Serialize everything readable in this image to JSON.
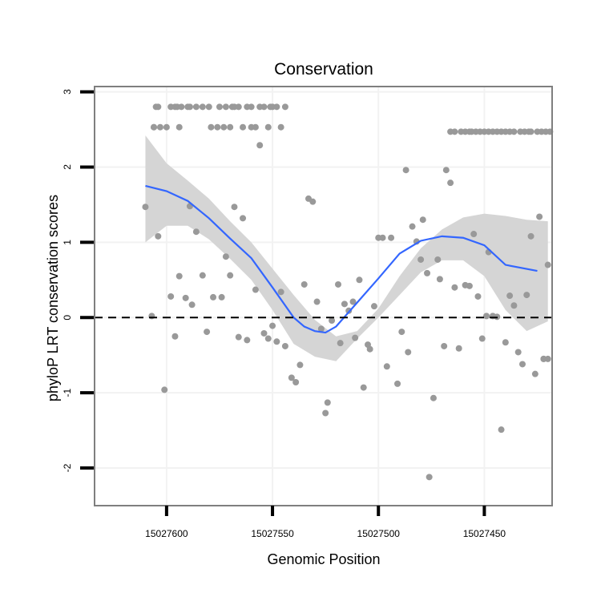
{
  "chart_data": {
    "type": "scatter",
    "title": "Conservation",
    "xlabel": "Genomic Position",
    "ylabel": "phyloP LRT conservation scores",
    "x_reversed": true,
    "xlim": [
      15027418,
      15027634
    ],
    "ylim": [
      -2.5,
      3.07
    ],
    "x_ticks": [
      15027600,
      15027550,
      15027500,
      15027450
    ],
    "y_ticks": [
      -2,
      -1,
      0,
      1,
      2,
      3
    ],
    "reference_line": 0,
    "colors": {
      "points": "#999999",
      "smooth": "#3366ff",
      "ribbon": "#d3d3d3",
      "grid": "#f2f2f2",
      "border": "#7f7f7f"
    },
    "points": [
      [
        15027610,
        1.47
      ],
      [
        15027607,
        0.02
      ],
      [
        15027606,
        2.53
      ],
      [
        15027604,
        1.08
      ],
      [
        15027601,
        -0.96
      ],
      [
        15027598,
        0.28
      ],
      [
        15027596,
        -0.25
      ],
      [
        15027594,
        0.55
      ],
      [
        15027591,
        0.26
      ],
      [
        15027589,
        1.48
      ],
      [
        15027588,
        0.17
      ],
      [
        15027586,
        1.14
      ],
      [
        15027583,
        0.56
      ],
      [
        15027581,
        -0.19
      ],
      [
        15027578,
        0.27
      ],
      [
        15027574,
        0.27
      ],
      [
        15027572,
        0.81
      ],
      [
        15027570,
        0.56
      ],
      [
        15027568,
        1.47
      ],
      [
        15027566,
        -0.26
      ],
      [
        15027564,
        1.32
      ],
      [
        15027562,
        -0.3
      ],
      [
        15027560,
        2.53
      ],
      [
        15027558,
        0.37
      ],
      [
        15027556,
        2.29
      ],
      [
        15027554,
        -0.21
      ],
      [
        15027552,
        -0.28
      ],
      [
        15027550,
        -0.11
      ],
      [
        15027548,
        -0.32
      ],
      [
        15027546,
        0.34
      ],
      [
        15027544,
        -0.38
      ],
      [
        15027541,
        -0.8
      ],
      [
        15027539,
        -0.86
      ],
      [
        15027537,
        -0.63
      ],
      [
        15027535,
        0.44
      ],
      [
        15027533,
        1.58
      ],
      [
        15027531,
        1.54
      ],
      [
        15027529,
        0.21
      ],
      [
        15027527,
        -0.15
      ],
      [
        15027525,
        -1.27
      ],
      [
        15027524,
        -1.13
      ],
      [
        15027522,
        -0.04
      ],
      [
        15027519,
        0.44
      ],
      [
        15027518,
        -0.34
      ],
      [
        15027516,
        0.18
      ],
      [
        15027514,
        0.09
      ],
      [
        15027512,
        0.21
      ],
      [
        15027511,
        -0.27
      ],
      [
        15027509,
        0.5
      ],
      [
        15027507,
        -0.93
      ],
      [
        15027505,
        -0.36
      ],
      [
        15027504,
        -0.42
      ],
      [
        15027502,
        0.15
      ],
      [
        15027500,
        1.06
      ],
      [
        15027498,
        1.06
      ],
      [
        15027496,
        -0.65
      ],
      [
        15027494,
        1.06
      ],
      [
        15027491,
        -0.88
      ],
      [
        15027489,
        -0.19
      ],
      [
        15027487,
        1.96
      ],
      [
        15027486,
        -0.46
      ],
      [
        15027484,
        1.21
      ],
      [
        15027482,
        1.01
      ],
      [
        15027480,
        0.77
      ],
      [
        15027479,
        1.3
      ],
      [
        15027477,
        0.59
      ],
      [
        15027476,
        -2.12
      ],
      [
        15027474,
        -1.07
      ],
      [
        15027472,
        0.77
      ],
      [
        15027471,
        0.51
      ],
      [
        15027469,
        -0.38
      ],
      [
        15027468,
        1.96
      ],
      [
        15027466,
        1.79
      ],
      [
        15027464,
        0.4
      ],
      [
        15027462,
        -0.41
      ],
      [
        15027459,
        0.43
      ],
      [
        15027457,
        0.42
      ],
      [
        15027455,
        1.11
      ],
      [
        15027453,
        0.28
      ],
      [
        15027451,
        -0.28
      ],
      [
        15027449,
        0.02
      ],
      [
        15027448,
        0.87
      ],
      [
        15027446,
        0.02
      ],
      [
        15027444,
        0.01
      ],
      [
        15027442,
        -1.49
      ],
      [
        15027440,
        -0.33
      ],
      [
        15027438,
        0.29
      ],
      [
        15027436,
        0.16
      ],
      [
        15027434,
        -0.46
      ],
      [
        15027432,
        -0.62
      ],
      [
        15027430,
        0.3
      ],
      [
        15027428,
        1.08
      ],
      [
        15027426,
        -0.75
      ],
      [
        15027424,
        1.34
      ],
      [
        15027422,
        -0.55
      ],
      [
        15027420,
        0.7
      ],
      [
        15027420,
        -0.55
      ],
      [
        15027422,
        -0.55
      ]
    ],
    "ribbon_top": [
      [
        15027610,
        2.42
      ],
      [
        15027600,
        2.05
      ],
      [
        15027590,
        1.82
      ],
      [
        15027580,
        1.58
      ],
      [
        15027570,
        1.28
      ],
      [
        15027560,
        1.0
      ],
      [
        15027550,
        0.65
      ],
      [
        15027540,
        0.3
      ],
      [
        15027530,
        -0.03
      ],
      [
        15027520,
        -0.25
      ],
      [
        15027510,
        -0.18
      ],
      [
        15027500,
        0.12
      ],
      [
        15027490,
        0.55
      ],
      [
        15027480,
        0.92
      ],
      [
        15027470,
        1.17
      ],
      [
        15027460,
        1.33
      ],
      [
        15027450,
        1.38
      ],
      [
        15027440,
        1.35
      ],
      [
        15027430,
        1.3
      ],
      [
        15027420,
        1.28
      ]
    ],
    "ribbon_bottom": [
      [
        15027610,
        1.0
      ],
      [
        15027600,
        1.22
      ],
      [
        15027590,
        1.22
      ],
      [
        15027580,
        1.04
      ],
      [
        15027570,
        0.78
      ],
      [
        15027560,
        0.5
      ],
      [
        15027550,
        0.1
      ],
      [
        15027540,
        -0.35
      ],
      [
        15027530,
        -0.52
      ],
      [
        15027520,
        -0.58
      ],
      [
        15027510,
        -0.28
      ],
      [
        15027500,
        0.0
      ],
      [
        15027490,
        0.3
      ],
      [
        15027480,
        0.6
      ],
      [
        15027470,
        0.76
      ],
      [
        15027460,
        0.76
      ],
      [
        15027450,
        0.55
      ],
      [
        15027440,
        0.1
      ],
      [
        15027430,
        -0.18
      ],
      [
        15027420,
        -0.05
      ]
    ],
    "smooth_line": [
      [
        15027610,
        1.75
      ],
      [
        15027600,
        1.68
      ],
      [
        15027590,
        1.55
      ],
      [
        15027580,
        1.32
      ],
      [
        15027570,
        1.05
      ],
      [
        15027560,
        0.79
      ],
      [
        15027550,
        0.4
      ],
      [
        15027540,
        0.0
      ],
      [
        15027535,
        -0.12
      ],
      [
        15027530,
        -0.18
      ],
      [
        15027525,
        -0.2
      ],
      [
        15027520,
        -0.12
      ],
      [
        15027510,
        0.2
      ],
      [
        15027500,
        0.52
      ],
      [
        15027490,
        0.85
      ],
      [
        15027480,
        1.02
      ],
      [
        15027470,
        1.08
      ],
      [
        15027460,
        1.06
      ],
      [
        15027450,
        0.96
      ],
      [
        15027440,
        0.7
      ],
      [
        15027425,
        0.62
      ]
    ],
    "ceiling_points": [
      15027606,
      15027605,
      15027604,
      15027603,
      15027600,
      15027598,
      15027596,
      15027595,
      15027594,
      15027593,
      15027590,
      15027589,
      15027586,
      15027583,
      15027580,
      15027579,
      15027576,
      15027575,
      15027573,
      15027572,
      15027570,
      15027569,
      15027568,
      15027566,
      15027564,
      15027562,
      15027560,
      15027558,
      15027556,
      15027554,
      15027552,
      15027551,
      15027550,
      15027548,
      15027546,
      15027544,
      15027466,
      15027464,
      15027461,
      15027459,
      15027457,
      15027456,
      15027454,
      15027452,
      15027450,
      15027448,
      15027446,
      15027444,
      15027442,
      15027440,
      15027438,
      15027436,
      15027433,
      15027431,
      15027429,
      15027428,
      15027425,
      15027423,
      15027421,
      15027419
    ]
  }
}
